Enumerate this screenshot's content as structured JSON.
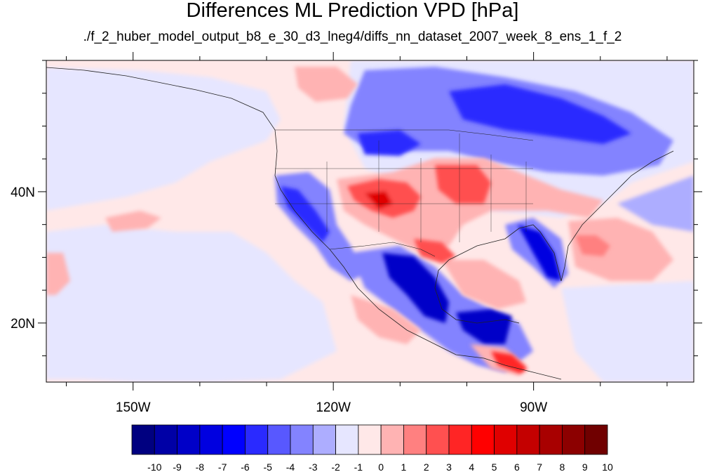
{
  "title": "Differences ML Prediction VPD [hPa]",
  "subtitle": "./f_2_huber_model_output_b8_e_30_d3_lneg4/diffs_nn_dataset_2007_week_8_ens_1_f_2",
  "map": {
    "lon_range": [
      -163,
      -66
    ],
    "lat_range": [
      11,
      60
    ],
    "lon_ticks": [
      {
        "value": -150,
        "label": "150W"
      },
      {
        "value": -120,
        "label": "120W"
      },
      {
        "value": -90,
        "label": "90W"
      }
    ],
    "lat_ticks": [
      {
        "value": 40,
        "label": "40N"
      },
      {
        "value": 20,
        "label": "20N"
      }
    ]
  },
  "colorbar": {
    "labels": [
      "-10",
      "-9",
      "-8",
      "-7",
      "-6",
      "-5",
      "-4",
      "-3",
      "-2",
      "-1",
      "0",
      "1",
      "2",
      "3",
      "4",
      "5",
      "6",
      "7",
      "8",
      "9",
      "10"
    ],
    "colors": [
      "#000080",
      "#0000a6",
      "#0000c8",
      "#0000e0",
      "#0000ff",
      "#2a2aff",
      "#5858ff",
      "#8383ff",
      "#adadff",
      "#e6e6ff",
      "#ffe8e8",
      "#ffb3b3",
      "#ff8080",
      "#ff5050",
      "#ff2525",
      "#ff0000",
      "#e00000",
      "#c40000",
      "#a80000",
      "#8c0000",
      "#700000"
    ]
  }
}
